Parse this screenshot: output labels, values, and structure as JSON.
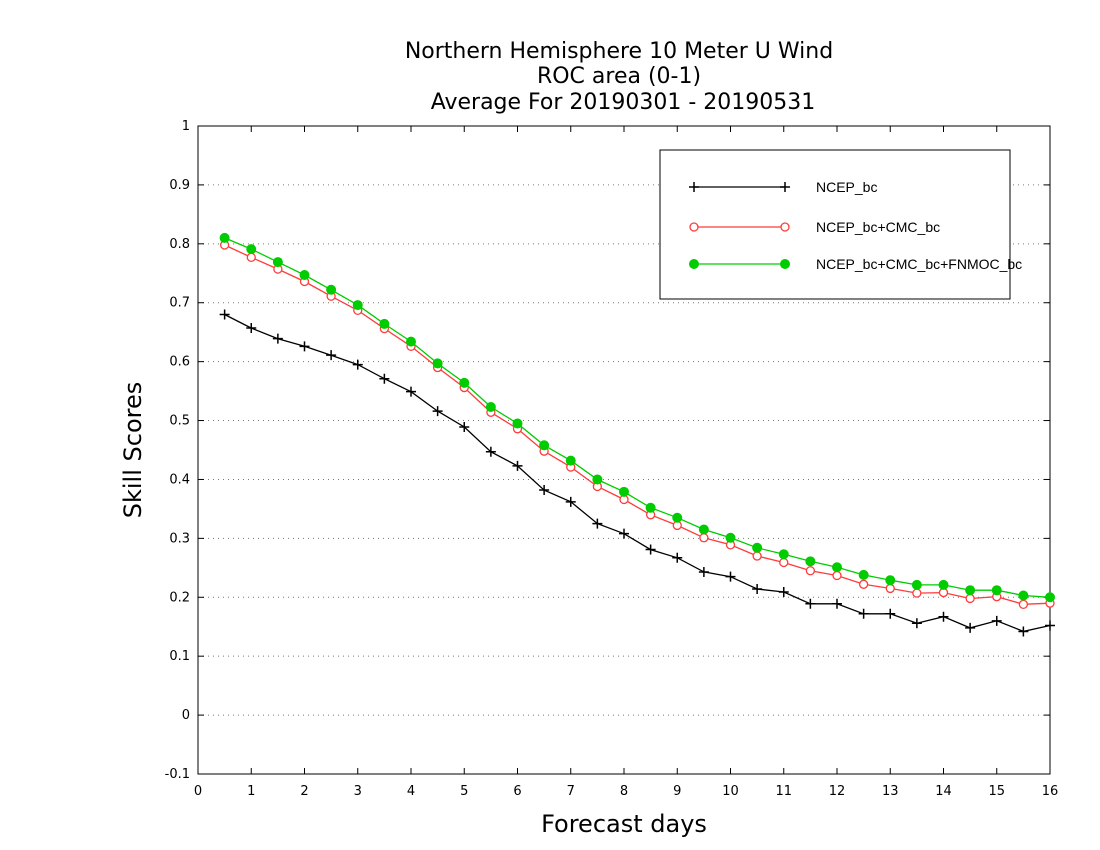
{
  "chart_data": {
    "type": "line",
    "title": [
      "Northern Hemisphere 10 Meter U Wind",
      "ROC area (0-1)",
      "Average For 20190301 - 20190531"
    ],
    "xlabel": "Forecast days",
    "ylabel": "Skill Scores",
    "xlim": [
      0,
      16
    ],
    "ylim": [
      -0.1,
      1
    ],
    "xticks": [
      0,
      1,
      2,
      3,
      4,
      5,
      6,
      7,
      8,
      9,
      10,
      11,
      12,
      13,
      14,
      15,
      16
    ],
    "yticks": [
      -0.1,
      0,
      0.1,
      0.2,
      0.3,
      0.4,
      0.5,
      0.6,
      0.7,
      0.8,
      0.9,
      1
    ],
    "ytick_labels": [
      "-0.1",
      "0",
      "0.1",
      "0.2",
      "0.3",
      "0.4",
      "0.5",
      "0.6",
      "0.7",
      "0.8",
      "0.9",
      "1"
    ],
    "grid": "horizontal dotted",
    "legend_position": "top-right",
    "x": [
      0.5,
      1,
      1.5,
      2,
      2.5,
      3,
      3.5,
      4,
      4.5,
      5,
      5.5,
      6,
      6.5,
      7,
      7.5,
      8,
      8.5,
      9,
      9.5,
      10,
      10.5,
      11,
      11.5,
      12,
      12.5,
      13,
      13.5,
      14,
      14.5,
      15,
      15.5,
      16
    ],
    "series": [
      {
        "name": "NCEP_bc",
        "color": "#000000",
        "marker": "plus",
        "values": [
          0.68,
          0.657,
          0.639,
          0.626,
          0.611,
          0.595,
          0.571,
          0.549,
          0.516,
          0.489,
          0.447,
          0.423,
          0.382,
          0.362,
          0.325,
          0.308,
          0.281,
          0.267,
          0.243,
          0.235,
          0.214,
          0.209,
          0.189,
          0.189,
          0.172,
          0.172,
          0.156,
          0.167,
          0.148,
          0.16,
          0.142,
          0.152
        ]
      },
      {
        "name": "NCEP_bc+CMC_bc",
        "color": "#ff3b3b",
        "marker": "open-circle",
        "values": [
          0.798,
          0.777,
          0.757,
          0.736,
          0.711,
          0.687,
          0.656,
          0.626,
          0.59,
          0.556,
          0.514,
          0.486,
          0.448,
          0.421,
          0.388,
          0.366,
          0.34,
          0.322,
          0.301,
          0.289,
          0.27,
          0.259,
          0.245,
          0.237,
          0.222,
          0.215,
          0.207,
          0.208,
          0.198,
          0.201,
          0.188,
          0.19
        ]
      },
      {
        "name": "NCEP_bc+CMC_bc+FNMOC_bc",
        "color": "#00cc00",
        "marker": "filled-circle",
        "values": [
          0.81,
          0.791,
          0.769,
          0.747,
          0.722,
          0.696,
          0.664,
          0.634,
          0.597,
          0.564,
          0.523,
          0.495,
          0.458,
          0.432,
          0.4,
          0.379,
          0.352,
          0.335,
          0.315,
          0.301,
          0.284,
          0.273,
          0.261,
          0.251,
          0.238,
          0.229,
          0.221,
          0.221,
          0.212,
          0.212,
          0.203,
          0.2
        ]
      }
    ]
  }
}
